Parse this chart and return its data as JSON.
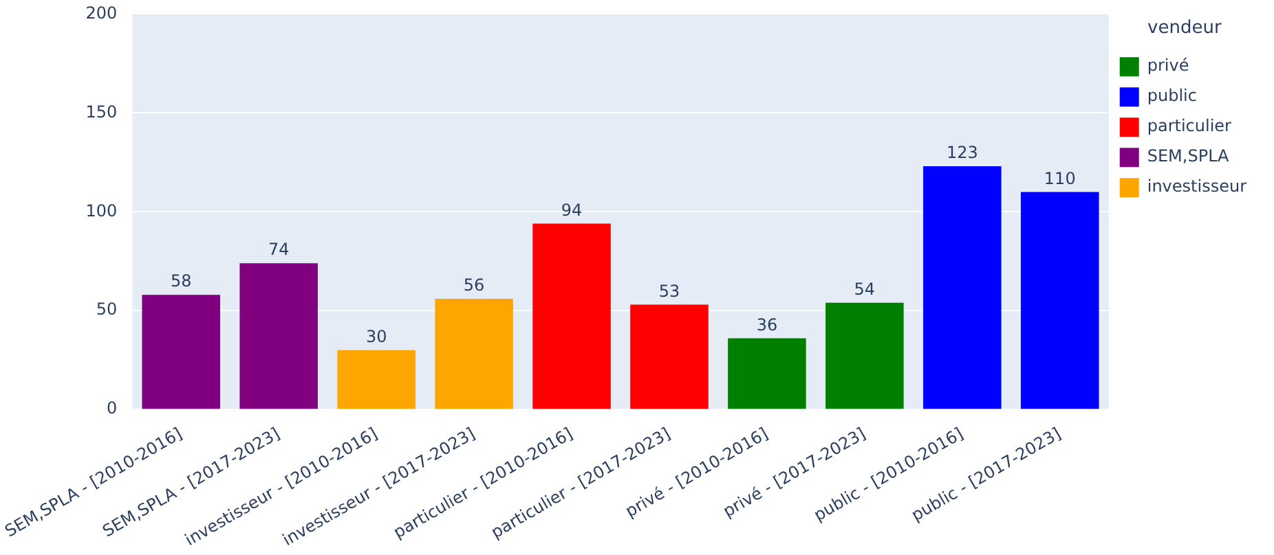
{
  "chart_data": {
    "type": "bar",
    "categories": [
      "SEM,SPLA - [2010-2016]",
      "SEM,SPLA - [2017-2023]",
      "investisseur - [2010-2016]",
      "investisseur - [2017-2023]",
      "particulier - [2010-2016]",
      "particulier - [2017-2023]",
      "privé - [2010-2016]",
      "privé - [2017-2023]",
      "public - [2010-2016]",
      "public - [2017-2023]"
    ],
    "series": [
      {
        "name": "privé",
        "color": "#008000",
        "values": [
          null,
          null,
          null,
          null,
          null,
          null,
          36,
          54,
          null,
          null
        ]
      },
      {
        "name": "public",
        "color": "#0000ff",
        "values": [
          null,
          null,
          null,
          null,
          null,
          null,
          null,
          null,
          123,
          110
        ]
      },
      {
        "name": "particulier",
        "color": "#ff0000",
        "values": [
          null,
          null,
          null,
          null,
          94,
          53,
          null,
          null,
          null,
          null
        ]
      },
      {
        "name": "SEM,SPLA",
        "color": "#800080",
        "values": [
          58,
          74,
          null,
          null,
          null,
          null,
          null,
          null,
          null,
          null
        ]
      },
      {
        "name": "investisseur",
        "color": "#ffa500",
        "values": [
          null,
          null,
          30,
          56,
          null,
          null,
          null,
          null,
          null,
          null
        ]
      }
    ],
    "legend_title": "vendeur",
    "ylim": [
      0,
      200
    ],
    "yticks": [
      0,
      50,
      100,
      150,
      200
    ],
    "grid": "y",
    "legend": "top right",
    "data_labels": true
  }
}
